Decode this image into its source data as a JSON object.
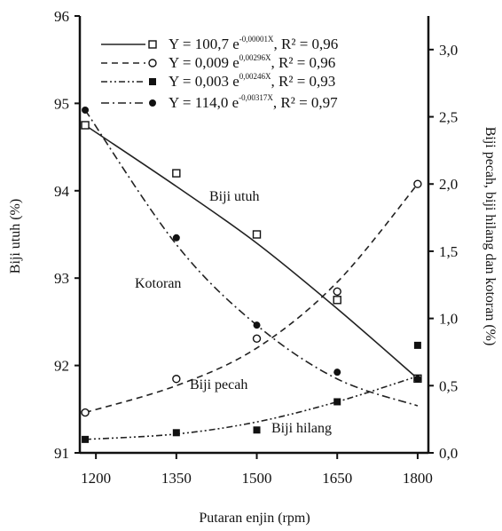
{
  "chart_data": {
    "type": "scatter",
    "xlabel": "Putaran enjin (rpm)",
    "ylabel_left": "Biji utuh (%)",
    "ylabel_right": "Biji pecah, biji hilang dan kotoran (%)",
    "x_ticks": [
      "1200",
      "1350",
      "1500",
      "1650",
      "1800"
    ],
    "xlim": [
      1170,
      1820
    ],
    "y_left_ticks": [
      "91",
      "92",
      "93",
      "94",
      "95",
      "96"
    ],
    "ylim_left": [
      91,
      96
    ],
    "y_right_ticks": [
      "0,0",
      "0,5",
      "1,0",
      "1,5",
      "2,0",
      "2,5",
      "3,0"
    ],
    "ylim_right": [
      0,
      3.25
    ],
    "grid": false,
    "legend_position": "top",
    "series": [
      {
        "name": "Biji utuh",
        "axis": "left",
        "marker": "open-square",
        "line": "solid",
        "equation": "Y = 100,7 e^{-0,00001X}, R² = 0,96",
        "eq_main": "Y = 100,7 e",
        "eq_exp": "-0,00001X",
        "eq_r2": ", R² = 0,96",
        "x": [
          1180,
          1350,
          1500,
          1650,
          1800
        ],
        "y": [
          94.75,
          94.2,
          93.5,
          92.75,
          91.85
        ],
        "fit": [
          [
            1180,
            94.75
          ],
          [
            1350,
            94.05
          ],
          [
            1500,
            93.4
          ],
          [
            1650,
            92.65
          ],
          [
            1800,
            91.85
          ]
        ]
      },
      {
        "name": "Biji pecah",
        "axis": "right",
        "marker": "open-circle",
        "line": "dashed",
        "equation": "Y = 0,009 e^{0,00296X}, R² = 0,96",
        "eq_main": "Y = 0,009 e",
        "eq_exp": "0,00296X",
        "eq_r2": ", R² = 0,96",
        "x": [
          1180,
          1350,
          1500,
          1650,
          1800
        ],
        "y": [
          0.3,
          0.55,
          0.85,
          1.2,
          2.0
        ],
        "fit": [
          [
            1180,
            0.3
          ],
          [
            1350,
            0.5
          ],
          [
            1500,
            0.78
          ],
          [
            1650,
            1.27
          ],
          [
            1800,
            2.0
          ]
        ]
      },
      {
        "name": "Biji hilang",
        "axis": "right",
        "marker": "filled-square",
        "line": "dash-dot-dot",
        "equation": "Y = 0,003 e^{0,00246X}, R² = 0,93",
        "eq_main": "Y = 0,003 e",
        "eq_exp": "0,00246X",
        "eq_r2": ", R² = 0,93",
        "x": [
          1180,
          1350,
          1500,
          1650,
          1800
        ],
        "y": [
          0.1,
          0.15,
          0.17,
          0.38,
          0.8
        ],
        "fit": [
          [
            1180,
            0.1
          ],
          [
            1350,
            0.14
          ],
          [
            1500,
            0.23
          ],
          [
            1650,
            0.38
          ],
          [
            1800,
            0.57
          ]
        ]
      },
      {
        "name": "Kotoran",
        "axis": "right",
        "marker": "filled-circle",
        "line": "dash-dot",
        "equation": "Y = 114,0 e^{-0,00317X}, R² = 0,97",
        "eq_main": "Y = 114,0 e",
        "eq_exp": "-0,00317X",
        "eq_r2": ", R² = 0,97",
        "x": [
          1180,
          1350,
          1500,
          1650,
          1800
        ],
        "y": [
          2.55,
          1.6,
          0.95,
          0.6,
          0.55
        ],
        "fit": [
          [
            1180,
            2.55
          ],
          [
            1350,
            1.55
          ],
          [
            1500,
            0.95
          ],
          [
            1650,
            0.55
          ],
          [
            1800,
            0.35
          ]
        ]
      }
    ],
    "annotations": [
      {
        "text": "Biji utuh",
        "series": "Biji utuh"
      },
      {
        "text": "Kotoran",
        "series": "Kotoran"
      },
      {
        "text": "Biji pecah",
        "series": "Biji pecah"
      },
      {
        "text": "Biji hilang",
        "series": "Biji hilang"
      }
    ]
  }
}
